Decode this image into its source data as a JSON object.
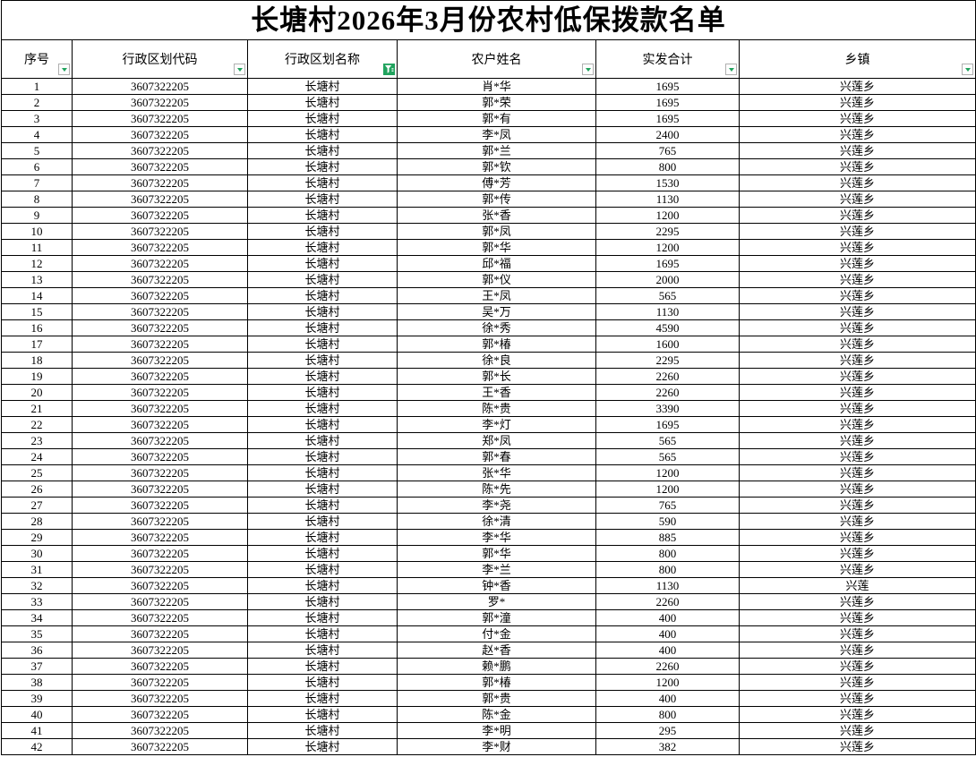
{
  "title": "长塘村2026年3月份农村低保拨款名单",
  "columns": [
    {
      "key": "seq",
      "label": "序号",
      "filter_active": false
    },
    {
      "key": "code",
      "label": "行政区划代码",
      "filter_active": false
    },
    {
      "key": "region",
      "label": "行政区划名称",
      "filter_active": true
    },
    {
      "key": "name",
      "label": "农户姓名",
      "filter_active": false
    },
    {
      "key": "amount",
      "label": "实发合计",
      "filter_active": false
    },
    {
      "key": "township",
      "label": "乡镇",
      "filter_active": false
    }
  ],
  "rows": [
    [
      "1",
      "3607322205",
      "长塘村",
      "肖*华",
      "1695",
      "兴莲乡"
    ],
    [
      "2",
      "3607322205",
      "长塘村",
      "郭*荣",
      "1695",
      "兴莲乡"
    ],
    [
      "3",
      "3607322205",
      "长塘村",
      "郭*有",
      "1695",
      "兴莲乡"
    ],
    [
      "4",
      "3607322205",
      "长塘村",
      "李*凤",
      "2400",
      "兴莲乡"
    ],
    [
      "5",
      "3607322205",
      "长塘村",
      "郭*兰",
      "765",
      "兴莲乡"
    ],
    [
      "6",
      "3607322205",
      "长塘村",
      "郭*钦",
      "800",
      "兴莲乡"
    ],
    [
      "7",
      "3607322205",
      "长塘村",
      "傅*芳",
      "1530",
      "兴莲乡"
    ],
    [
      "8",
      "3607322205",
      "长塘村",
      "郭*传",
      "1130",
      "兴莲乡"
    ],
    [
      "9",
      "3607322205",
      "长塘村",
      "张*香",
      "1200",
      "兴莲乡"
    ],
    [
      "10",
      "3607322205",
      "长塘村",
      "郭*凤",
      "2295",
      "兴莲乡"
    ],
    [
      "11",
      "3607322205",
      "长塘村",
      "郭*华",
      "1200",
      "兴莲乡"
    ],
    [
      "12",
      "3607322205",
      "长塘村",
      "邱*福",
      "1695",
      "兴莲乡"
    ],
    [
      "13",
      "3607322205",
      "长塘村",
      "郭*仪",
      "2000",
      "兴莲乡"
    ],
    [
      "14",
      "3607322205",
      "长塘村",
      "王*凤",
      "565",
      "兴莲乡"
    ],
    [
      "15",
      "3607322205",
      "长塘村",
      "吴*万",
      "1130",
      "兴莲乡"
    ],
    [
      "16",
      "3607322205",
      "长塘村",
      "徐*秀",
      "4590",
      "兴莲乡"
    ],
    [
      "17",
      "3607322205",
      "长塘村",
      "郭*椿",
      "1600",
      "兴莲乡"
    ],
    [
      "18",
      "3607322205",
      "长塘村",
      "徐*良",
      "2295",
      "兴莲乡"
    ],
    [
      "19",
      "3607322205",
      "长塘村",
      "郭*长",
      "2260",
      "兴莲乡"
    ],
    [
      "20",
      "3607322205",
      "长塘村",
      "王*香",
      "2260",
      "兴莲乡"
    ],
    [
      "21",
      "3607322205",
      "长塘村",
      "陈*贵",
      "3390",
      "兴莲乡"
    ],
    [
      "22",
      "3607322205",
      "长塘村",
      "李*灯",
      "1695",
      "兴莲乡"
    ],
    [
      "23",
      "3607322205",
      "长塘村",
      "郑*凤",
      "565",
      "兴莲乡"
    ],
    [
      "24",
      "3607322205",
      "长塘村",
      "郭*春",
      "565",
      "兴莲乡"
    ],
    [
      "25",
      "3607322205",
      "长塘村",
      "张*华",
      "1200",
      "兴莲乡"
    ],
    [
      "26",
      "3607322205",
      "长塘村",
      "陈*先",
      "1200",
      "兴莲乡"
    ],
    [
      "27",
      "3607322205",
      "长塘村",
      "李*尧",
      "765",
      "兴莲乡"
    ],
    [
      "28",
      "3607322205",
      "长塘村",
      "徐*清",
      "590",
      "兴莲乡"
    ],
    [
      "29",
      "3607322205",
      "长塘村",
      "李*华",
      "885",
      "兴莲乡"
    ],
    [
      "30",
      "3607322205",
      "长塘村",
      "郭*华",
      "800",
      "兴莲乡"
    ],
    [
      "31",
      "3607322205",
      "长塘村",
      "李*兰",
      "800",
      "兴莲乡"
    ],
    [
      "32",
      "3607322205",
      "长塘村",
      "钟*香",
      "1130",
      "兴莲"
    ],
    [
      "33",
      "3607322205",
      "长塘村",
      "罗*",
      "2260",
      "兴莲乡"
    ],
    [
      "34",
      "3607322205",
      "长塘村",
      "郭*潼",
      "400",
      "兴莲乡"
    ],
    [
      "35",
      "3607322205",
      "长塘村",
      "付*金",
      "400",
      "兴莲乡"
    ],
    [
      "36",
      "3607322205",
      "长塘村",
      "赵*香",
      "400",
      "兴莲乡"
    ],
    [
      "37",
      "3607322205",
      "长塘村",
      "赖*鹏",
      "2260",
      "兴莲乡"
    ],
    [
      "38",
      "3607322205",
      "长塘村",
      "郭*椿",
      "1200",
      "兴莲乡"
    ],
    [
      "39",
      "3607322205",
      "长塘村",
      "郭*贵",
      "400",
      "兴莲乡"
    ],
    [
      "40",
      "3607322205",
      "长塘村",
      "陈*金",
      "800",
      "兴莲乡"
    ],
    [
      "41",
      "3607322205",
      "长塘村",
      "李*明",
      "295",
      "兴莲乡"
    ],
    [
      "42",
      "3607322205",
      "长塘村",
      "李*财",
      "382",
      "兴莲乡"
    ]
  ],
  "colors": {
    "accent_green": "#21A35E",
    "border": "#000000",
    "background": "#FFFFFF"
  },
  "icons": {
    "filter_dropdown": "triangle-down",
    "filter_active": "funnel"
  }
}
